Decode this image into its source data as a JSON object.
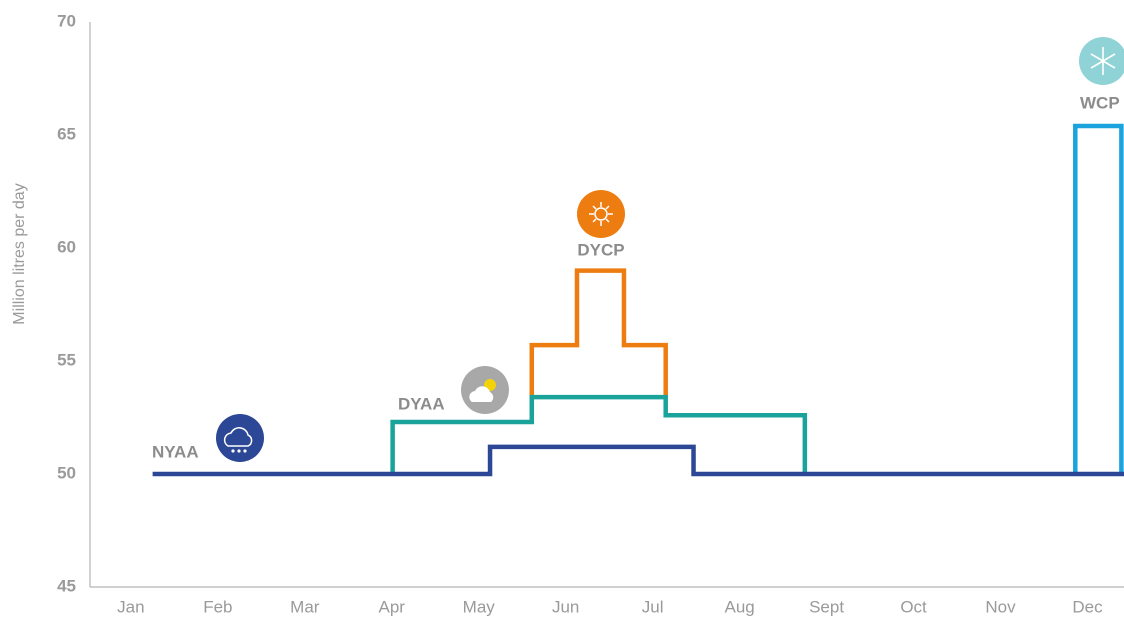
{
  "chart_data": {
    "type": "line",
    "y_label": "Million litres per day",
    "xlim": [
      0.53,
      12.42
    ],
    "xticks": [
      {
        "value": 1,
        "label": "Jan"
      },
      {
        "value": 2,
        "label": "Feb"
      },
      {
        "value": 3,
        "label": "Mar"
      },
      {
        "value": 4,
        "label": "Apr"
      },
      {
        "value": 5,
        "label": "May"
      },
      {
        "value": 6,
        "label": "Jun"
      },
      {
        "value": 7,
        "label": "Jul"
      },
      {
        "value": 8,
        "label": "Aug"
      },
      {
        "value": 9,
        "label": "Sept"
      },
      {
        "value": 10,
        "label": "Oct"
      },
      {
        "value": 11,
        "label": "Nov"
      },
      {
        "value": 12,
        "label": "Dec"
      }
    ],
    "ylim": [
      45,
      70
    ],
    "yticks": [
      45,
      50,
      55,
      60,
      65,
      70
    ],
    "grid": false,
    "series": [
      {
        "name": "NYAA",
        "color": "#2b4796",
        "x": [
          1.25,
          5.13,
          5.13,
          7.47,
          7.47,
          12.42
        ],
        "values": [
          50,
          50,
          51.2,
          51.2,
          50,
          50
        ]
      },
      {
        "name": "DYAA",
        "color": "#1aa39a",
        "x": [
          4.01,
          4.01,
          5.61,
          5.61,
          7.15,
          7.15,
          8.75,
          8.75
        ],
        "values": [
          50,
          52.3,
          52.3,
          53.4,
          53.4,
          52.6,
          52.6,
          50
        ]
      },
      {
        "name": "DYCP",
        "color": "#ee7d11",
        "x": [
          5.61,
          5.61,
          6.13,
          6.13,
          6.67,
          6.67,
          7.15,
          7.15
        ],
        "values": [
          53.4,
          55.7,
          55.7,
          59.0,
          59.0,
          55.7,
          55.7,
          53.4
        ]
      },
      {
        "name": "WCP",
        "color": "#1ba3dd",
        "x": [
          11.86,
          11.86,
          12.39,
          12.39
        ],
        "values": [
          50,
          65.4,
          65.4,
          50
        ]
      }
    ]
  }
}
